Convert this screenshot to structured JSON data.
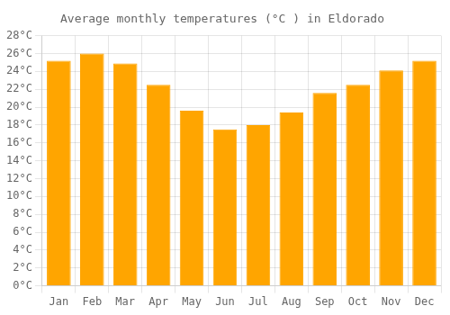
{
  "chart_data": {
    "type": "bar",
    "title": "Average monthly temperatures (°C ) in Eldorado",
    "categories": [
      "Jan",
      "Feb",
      "Mar",
      "Apr",
      "May",
      "Jun",
      "Jul",
      "Aug",
      "Sep",
      "Oct",
      "Nov",
      "Dec"
    ],
    "values": [
      25.2,
      26.0,
      24.9,
      22.5,
      19.6,
      17.5,
      18.0,
      19.4,
      21.6,
      22.5,
      24.1,
      25.2
    ],
    "color": "#FFA500",
    "ylim": [
      0,
      28
    ],
    "yticks": [
      {
        "value": 0,
        "label": "0°C"
      },
      {
        "value": 2,
        "label": "2°C"
      },
      {
        "value": 4,
        "label": "4°C"
      },
      {
        "value": 6,
        "label": "6°C"
      },
      {
        "value": 8,
        "label": "8°C"
      },
      {
        "value": 10,
        "label": "10°C"
      },
      {
        "value": 12,
        "label": "12°C"
      },
      {
        "value": 14,
        "label": "14°C"
      },
      {
        "value": 16,
        "label": "16°C"
      },
      {
        "value": 18,
        "label": "18°C"
      },
      {
        "value": 20,
        "label": "20°C"
      },
      {
        "value": 22,
        "label": "22°C"
      },
      {
        "value": 24,
        "label": "24°C"
      },
      {
        "value": 26,
        "label": "26°C"
      },
      {
        "value": 28,
        "label": "28°C"
      }
    ],
    "grid": true
  }
}
